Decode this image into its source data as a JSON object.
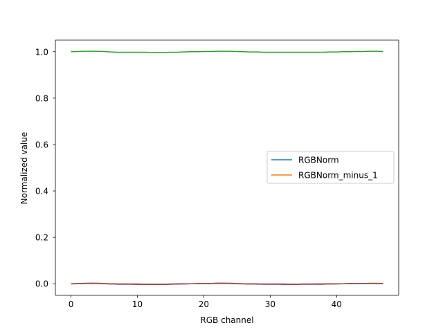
{
  "chart_data": {
    "type": "line",
    "title": "",
    "xlabel": "RGB channel",
    "ylabel": "Normalized value",
    "xlim": [
      -2.35,
      49.35
    ],
    "ylim": [
      -0.05,
      1.05
    ],
    "xticks": [
      0,
      10,
      20,
      30,
      40
    ],
    "xtick_labels": [
      "0",
      "10",
      "20",
      "30",
      "40"
    ],
    "yticks": [
      0.0,
      0.2,
      0.4,
      0.6,
      0.8,
      1.0
    ],
    "ytick_labels": [
      "0.0",
      "0.2",
      "0.4",
      "0.6",
      "0.8",
      "1.0"
    ],
    "grid": false,
    "legend_placement": "center-right",
    "legend": [
      "RGBNorm",
      "RGBNorm_minus_1"
    ],
    "x": [
      0,
      1,
      2,
      3,
      4,
      5,
      6,
      7,
      8,
      9,
      10,
      11,
      12,
      13,
      14,
      15,
      16,
      17,
      18,
      19,
      20,
      21,
      22,
      23,
      24,
      25,
      26,
      27,
      28,
      29,
      30,
      31,
      32,
      33,
      34,
      35,
      36,
      37,
      38,
      39,
      40,
      41,
      42,
      43,
      44,
      45,
      46,
      47
    ],
    "series": [
      {
        "legend_index": 0,
        "color": "#1f77b4",
        "values": [
          0.0,
          0.001,
          0.002,
          0.002,
          0.002,
          0.001,
          -0.001,
          -0.002,
          -0.002,
          -0.002,
          -0.002,
          -0.002,
          -0.003,
          -0.003,
          -0.003,
          -0.002,
          -0.002,
          -0.001,
          0.0,
          0.0,
          0.001,
          0.001,
          0.002,
          0.002,
          0.002,
          0.001,
          0.0,
          -0.001,
          -0.001,
          -0.002,
          -0.002,
          -0.002,
          -0.002,
          -0.002,
          -0.002,
          -0.002,
          -0.002,
          -0.002,
          -0.002,
          -0.001,
          -0.001,
          0.0,
          0.0,
          0.001,
          0.001,
          0.001,
          0.001,
          0.001
        ]
      },
      {
        "legend_index": 1,
        "color": "#ff7f0e",
        "values": [
          0.0,
          0.001,
          0.001,
          0.002,
          0.002,
          0.001,
          0.0,
          -0.001,
          -0.001,
          -0.002,
          -0.002,
          -0.002,
          -0.002,
          -0.003,
          -0.003,
          -0.002,
          -0.001,
          -0.001,
          0.0,
          0.0,
          0.001,
          0.001,
          0.002,
          0.002,
          0.002,
          0.001,
          0.0,
          -0.001,
          -0.001,
          -0.002,
          -0.002,
          -0.002,
          -0.002,
          -0.002,
          -0.002,
          -0.002,
          -0.002,
          -0.002,
          -0.002,
          -0.001,
          -0.001,
          0.0,
          0.0,
          0.001,
          0.001,
          0.002,
          0.002,
          0.001
        ]
      },
      {
        "color": "#2ca02c",
        "values": [
          1.0,
          1.001,
          1.002,
          1.002,
          1.002,
          1.001,
          0.999,
          0.998,
          0.998,
          0.998,
          0.998,
          0.998,
          0.997,
          0.997,
          0.997,
          0.998,
          0.998,
          0.999,
          1.0,
          1.0,
          1.001,
          1.001,
          1.002,
          1.002,
          1.002,
          1.001,
          1.0,
          0.999,
          0.999,
          0.998,
          0.998,
          0.998,
          0.998,
          0.998,
          0.998,
          0.998,
          0.998,
          0.998,
          0.998,
          0.999,
          0.999,
          1.0,
          1.0,
          1.001,
          1.001,
          1.002,
          1.002,
          1.001
        ]
      },
      {
        "color": "#d62728",
        "values": [
          -0.001,
          0.0,
          0.001,
          0.002,
          0.001,
          0.0,
          -0.001,
          -0.002,
          -0.002,
          -0.002,
          -0.003,
          -0.003,
          -0.003,
          -0.003,
          -0.003,
          -0.002,
          -0.001,
          0.0,
          0.0,
          0.001,
          0.001,
          0.001,
          0.002,
          0.002,
          0.001,
          0.0,
          -0.001,
          -0.001,
          -0.002,
          -0.002,
          -0.002,
          -0.002,
          -0.003,
          -0.003,
          -0.003,
          -0.002,
          -0.002,
          -0.002,
          -0.002,
          -0.001,
          0.0,
          0.0,
          0.001,
          0.001,
          0.001,
          0.001,
          0.001,
          0.0
        ]
      },
      {
        "color": "#9467bd",
        "values": [
          0.0,
          0.0,
          0.001,
          0.001,
          0.001,
          0.0,
          -0.001,
          -0.002,
          -0.002,
          -0.002,
          -0.002,
          -0.002,
          -0.002,
          -0.002,
          -0.002,
          -0.002,
          -0.001,
          -0.001,
          0.0,
          0.0,
          0.001,
          0.001,
          0.001,
          0.001,
          0.001,
          0.0,
          0.0,
          -0.001,
          -0.001,
          -0.002,
          -0.002,
          -0.002,
          -0.002,
          -0.002,
          -0.002,
          -0.002,
          -0.002,
          -0.001,
          -0.001,
          -0.001,
          0.0,
          0.0,
          0.0,
          0.001,
          0.001,
          0.001,
          0.001,
          0.0
        ]
      },
      {
        "color": "#8c564b",
        "values": [
          0.0,
          0.0,
          0.001,
          0.001,
          0.001,
          0.0,
          0.0,
          -0.001,
          -0.001,
          -0.001,
          -0.001,
          -0.002,
          -0.002,
          -0.002,
          -0.002,
          -0.001,
          -0.001,
          0.0,
          0.0,
          0.0,
          0.001,
          0.001,
          0.001,
          0.001,
          0.001,
          0.0,
          0.0,
          -0.001,
          -0.001,
          -0.001,
          -0.001,
          -0.001,
          -0.001,
          -0.002,
          -0.002,
          -0.001,
          -0.001,
          -0.001,
          -0.001,
          0.0,
          0.0,
          0.0,
          0.001,
          0.001,
          0.001,
          0.001,
          0.001,
          0.0
        ]
      }
    ]
  }
}
